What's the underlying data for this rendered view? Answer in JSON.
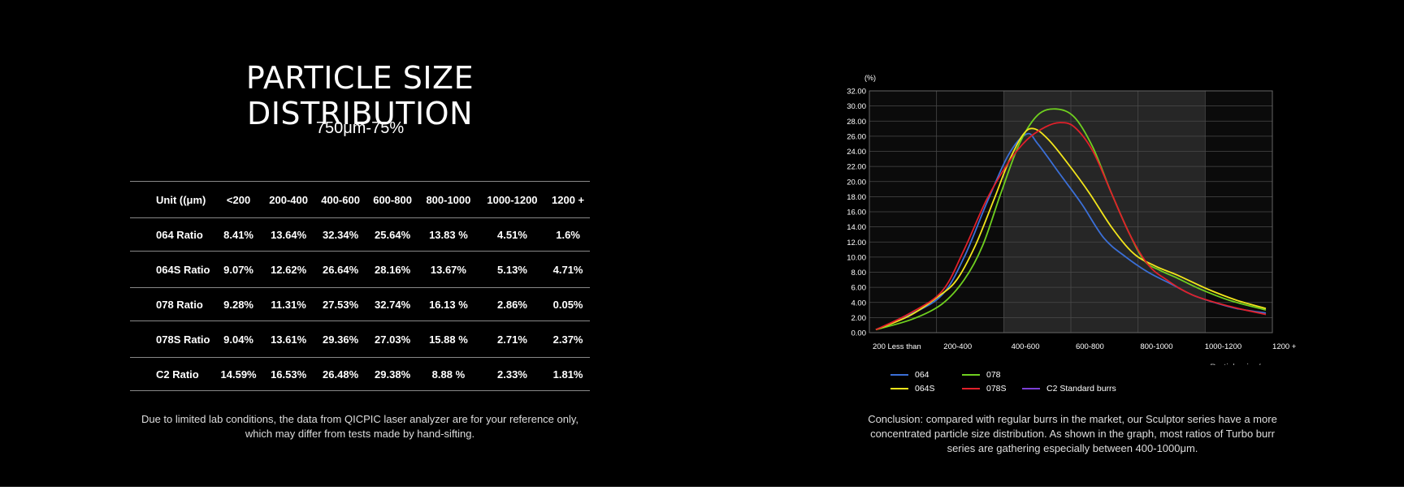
{
  "title": "PARTICLE SIZE DISTRIBUTION",
  "subtitle": "750μm-75%",
  "table": {
    "headers": [
      "Unit ((μm)",
      "<200",
      "200-400",
      "400-600",
      "600-800",
      "800-1000",
      "1000-1200",
      "1200 +"
    ],
    "rows": [
      {
        "label": "064 Ratio",
        "values": [
          "8.41%",
          "13.64%",
          "32.34%",
          "25.64%",
          "13.83 %",
          "4.51%",
          "1.6%"
        ]
      },
      {
        "label": "064S Ratio",
        "values": [
          "9.07%",
          "12.62%",
          "26.64%",
          "28.16%",
          "13.67%",
          "5.13%",
          "4.71%"
        ]
      },
      {
        "label": "078 Ratio",
        "values": [
          "9.28%",
          "11.31%",
          "27.53%",
          "32.74%",
          "16.13 %",
          "2.86%",
          "0.05%"
        ]
      },
      {
        "label": "078S Ratio",
        "values": [
          "9.04%",
          "13.61%",
          "29.36%",
          "27.03%",
          "15.88 %",
          "2.71%",
          "2.37%"
        ]
      },
      {
        "label": "C2 Ratio",
        "values": [
          "14.59%",
          "16.53%",
          "26.48%",
          "29.38%",
          "8.88 %",
          "2.33%",
          "1.81%"
        ]
      }
    ]
  },
  "note_line1": "Due to limited lab conditions, the data from QICPIC laser analyzer are for your reference only,",
  "note_line2": "which may differ from tests made by hand-sifting.",
  "conclusion_line1": "Conclusion: compared with regular burrs in the market, our Sculptor series have a more",
  "conclusion_line2": "concentrated particle size distribution. As shown in the graph, most ratios of Turbo burr",
  "conclusion_line3": "series are gathering especially between 400-1000μm.",
  "chart_data": {
    "type": "line",
    "ylabel": "(%)",
    "xlabel": "Particle size/μm",
    "ylim": [
      0,
      32
    ],
    "y_ticks": [
      "0.00",
      "2.00",
      "4.00",
      "6.00",
      "8.00",
      "10.00",
      "12.00",
      "14.00",
      "16.00",
      "18.00",
      "20.00",
      "22.00",
      "24.00",
      "26.00",
      "28.00",
      "30.00",
      "32.00"
    ],
    "x_tick_labels": [
      "200 Less than",
      "200-400",
      "400-600",
      "600-800",
      "800-1000",
      "1000-1200",
      "1200 +"
    ],
    "highlight_band": "400-600 to 600-800",
    "grid": true,
    "legend_placement": "bottom-left",
    "series": [
      {
        "name": "064",
        "color": "#3b6fd6",
        "points": [
          [
            0.0,
            0.4
          ],
          [
            0.45,
            2.3
          ],
          [
            0.9,
            5.0
          ],
          [
            1.2,
            10.0
          ],
          [
            1.5,
            17.0
          ],
          [
            1.8,
            23.5
          ],
          [
            2.05,
            26.3
          ],
          [
            2.2,
            25.0
          ],
          [
            2.5,
            21.0
          ],
          [
            2.8,
            17.0
          ],
          [
            3.1,
            12.5
          ],
          [
            3.4,
            10.0
          ],
          [
            3.7,
            8.0
          ],
          [
            4.0,
            6.5
          ],
          [
            4.3,
            5.0
          ],
          [
            4.6,
            4.0
          ],
          [
            4.9,
            3.2
          ],
          [
            5.3,
            2.6
          ]
        ]
      },
      {
        "name": "078",
        "color": "#6fcf1f",
        "points": [
          [
            0.0,
            0.4
          ],
          [
            0.5,
            1.8
          ],
          [
            0.9,
            3.8
          ],
          [
            1.2,
            7.0
          ],
          [
            1.45,
            11.5
          ],
          [
            1.7,
            18.5
          ],
          [
            1.95,
            25.0
          ],
          [
            2.2,
            28.8
          ],
          [
            2.45,
            29.6
          ],
          [
            2.7,
            28.5
          ],
          [
            2.95,
            24.5
          ],
          [
            3.2,
            18.5
          ],
          [
            3.45,
            13.0
          ],
          [
            3.65,
            9.5
          ],
          [
            3.85,
            8.3
          ],
          [
            4.1,
            7.2
          ],
          [
            4.4,
            5.8
          ],
          [
            4.8,
            4.3
          ],
          [
            5.3,
            3.0
          ]
        ]
      },
      {
        "name": "064S",
        "color": "#f2e51b",
        "points": [
          [
            0.0,
            0.4
          ],
          [
            0.45,
            2.2
          ],
          [
            0.85,
            4.8
          ],
          [
            1.1,
            7.0
          ],
          [
            1.35,
            11.5
          ],
          [
            1.6,
            17.5
          ],
          [
            1.8,
            22.5
          ],
          [
            2.0,
            26.2
          ],
          [
            2.15,
            27.0
          ],
          [
            2.35,
            25.5
          ],
          [
            2.6,
            22.5
          ],
          [
            2.9,
            18.5
          ],
          [
            3.2,
            14.0
          ],
          [
            3.5,
            10.5
          ],
          [
            3.8,
            8.8
          ],
          [
            4.1,
            7.6
          ],
          [
            4.5,
            5.8
          ],
          [
            4.9,
            4.3
          ],
          [
            5.3,
            3.2
          ]
        ]
      },
      {
        "name": "078S",
        "color": "#e0202a",
        "points": [
          [
            0.0,
            0.4
          ],
          [
            0.45,
            2.5
          ],
          [
            0.9,
            5.5
          ],
          [
            1.2,
            11.0
          ],
          [
            1.5,
            17.5
          ],
          [
            1.8,
            22.5
          ],
          [
            2.05,
            25.5
          ],
          [
            2.3,
            27.2
          ],
          [
            2.5,
            27.8
          ],
          [
            2.7,
            27.2
          ],
          [
            2.95,
            24.0
          ],
          [
            3.2,
            18.5
          ],
          [
            3.45,
            13.0
          ],
          [
            3.7,
            9.0
          ],
          [
            3.95,
            7.0
          ],
          [
            4.3,
            5.0
          ],
          [
            4.8,
            3.5
          ],
          [
            5.3,
            2.4
          ]
        ]
      }
    ],
    "legend_entries": [
      {
        "name": "064",
        "color": "#3b6fd6"
      },
      {
        "name": "078",
        "color": "#6fcf1f"
      },
      {
        "name": "064S",
        "color": "#f2e51b"
      },
      {
        "name": "078S",
        "color": "#e0202a"
      },
      {
        "name": "C2 Standard burrs",
        "color": "#7b3fd6"
      }
    ]
  }
}
